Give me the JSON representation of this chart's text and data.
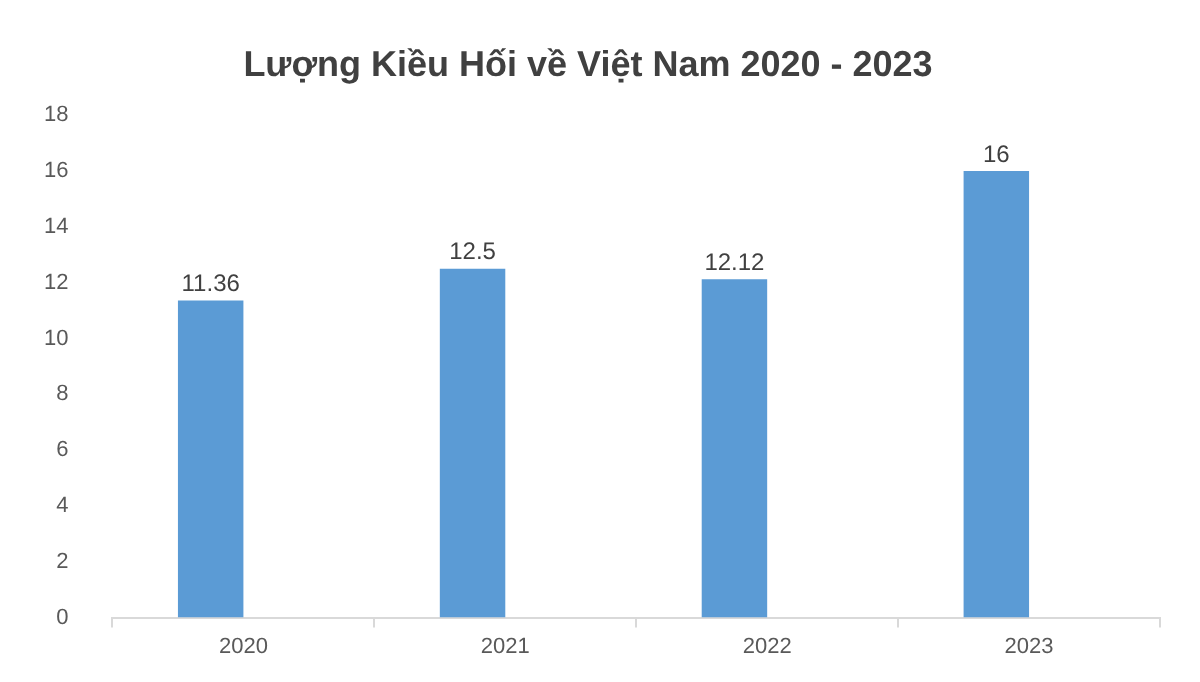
{
  "chart_data": {
    "type": "bar",
    "title": "Lượng Kiều Hối về Việt Nam 2020 - 2023",
    "categories": [
      "2020",
      "2021",
      "2022",
      "2023"
    ],
    "values": [
      11.36,
      12.5,
      12.12,
      16
    ],
    "color": "#5b9bd5",
    "ylim": [
      0,
      18
    ],
    "yticks": [
      0,
      2,
      4,
      6,
      8,
      10,
      12,
      14,
      16,
      18
    ],
    "data_labels": true
  }
}
